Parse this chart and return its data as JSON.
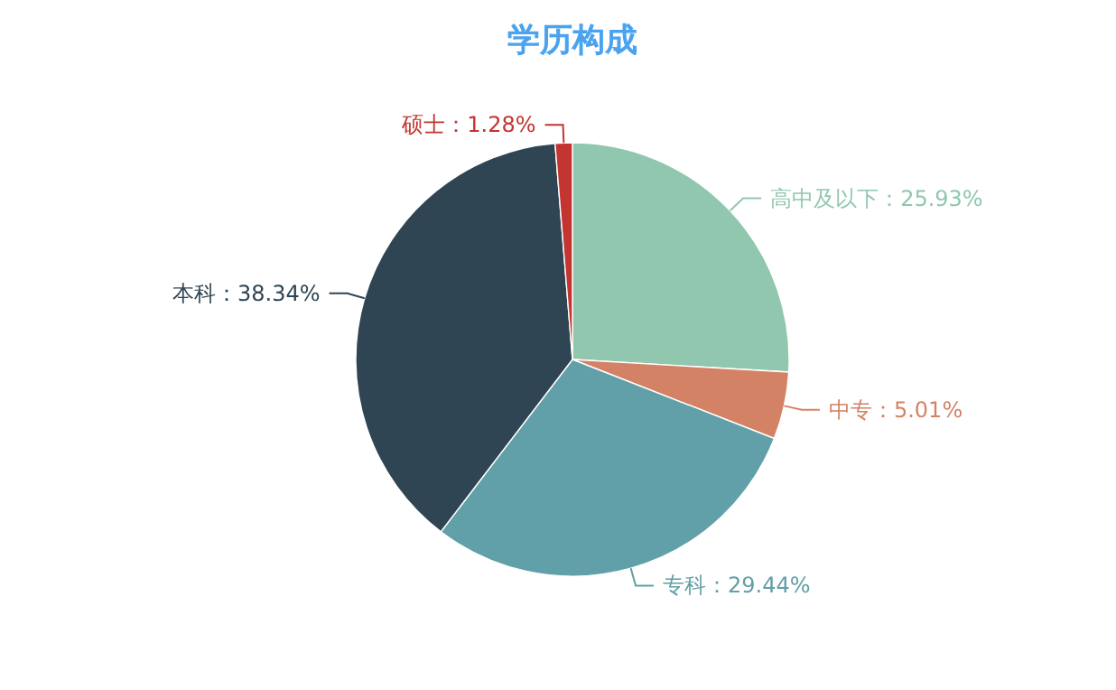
{
  "chart_data": {
    "type": "pie",
    "title": "学历构成",
    "categories": [
      "高中及以下",
      "中专",
      "专科",
      "本科",
      "硕士"
    ],
    "values": [
      25.93,
      5.01,
      29.44,
      38.34,
      1.28
    ],
    "colors": [
      "#91c7ae",
      "#d48265",
      "#61a0a8",
      "#2f4554",
      "#c23531"
    ],
    "value_labels": [
      "：25.93%",
      "：5.01%",
      "：29.44%",
      "：38.34%",
      "：1.28%"
    ]
  }
}
